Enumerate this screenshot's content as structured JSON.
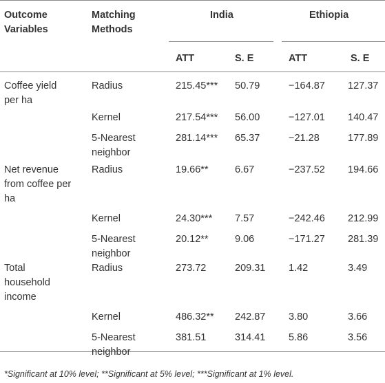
{
  "table": {
    "headers": {
      "outcome": [
        "Outcome",
        "Variables"
      ],
      "method": [
        "Matching",
        "Methods"
      ],
      "group1": "India",
      "group2": "Ethiopia",
      "att": "ATT",
      "se": "S. E"
    },
    "rows": [
      {
        "outcome": [
          "Coffee yield",
          "per ha"
        ],
        "method": [
          "Radius"
        ],
        "india_att": "215.45***",
        "india_se": "50.79",
        "eth_att": "−164.87",
        "eth_se": "127.37"
      },
      {
        "outcome": [],
        "method": [
          "Kernel"
        ],
        "india_att": "217.54***",
        "india_se": "56.00",
        "eth_att": "−127.01",
        "eth_se": "140.47"
      },
      {
        "outcome": [],
        "method": [
          "5-Nearest",
          "neighbor"
        ],
        "india_att": "281.14***",
        "india_se": "65.37",
        "eth_att": "−21.28",
        "eth_se": "177.89"
      },
      {
        "outcome": [
          "Net revenue",
          "from coffee per",
          "ha"
        ],
        "method": [
          "Radius"
        ],
        "india_att": "19.66**",
        "india_se": "6.67",
        "eth_att": "−237.52",
        "eth_se": "194.66"
      },
      {
        "outcome": [],
        "method": [
          "Kernel"
        ],
        "india_att": "24.30***",
        "india_se": "7.57",
        "eth_att": "−242.46",
        "eth_se": "212.99"
      },
      {
        "outcome": [],
        "method": [
          "5-Nearest",
          "neighbor"
        ],
        "india_att": "20.12**",
        "india_se": "9.06",
        "eth_att": "−171.27",
        "eth_se": "281.39"
      },
      {
        "outcome": [
          "Total",
          "household",
          "income"
        ],
        "method": [
          "Radius"
        ],
        "india_att": "273.72",
        "india_se": "209.31",
        "eth_att": "1.42",
        "eth_se": "3.49"
      },
      {
        "outcome": [],
        "method": [
          "Kernel"
        ],
        "india_att": "486.32**",
        "india_se": "242.87",
        "eth_att": "3.80",
        "eth_se": "3.66"
      },
      {
        "outcome": [],
        "method": [
          "5-Nearest",
          "neighbor"
        ],
        "india_att": "381.51",
        "india_se": "314.41",
        "eth_att": "5.86",
        "eth_se": "3.56"
      }
    ],
    "footnote": "*Significant at 10% level; **Significant at 5% level; ***Significant at 1% level."
  }
}
